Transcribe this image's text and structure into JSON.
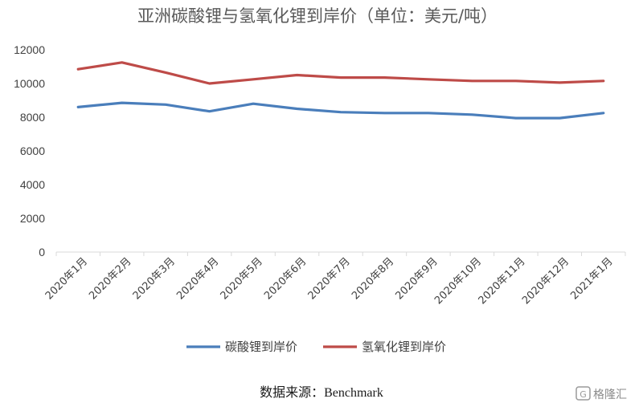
{
  "chart_data": {
    "type": "line",
    "title": "亚洲碳酸锂与氢氧化锂到岸价（单位：美元/吨）",
    "categories": [
      "2020年1月",
      "2020年2月",
      "2020年3月",
      "2020年4月",
      "2020年5月",
      "2020年6月",
      "2020年7月",
      "2020年8月",
      "2020年9月",
      "2020年10月",
      "2020年11月",
      "2020年12月",
      "2021年1月"
    ],
    "series": [
      {
        "name": "碳酸锂到岸价",
        "color": "#4a7ebb",
        "values": [
          8600,
          8850,
          8750,
          8350,
          8800,
          8500,
          8300,
          8250,
          8250,
          8150,
          7950,
          7950,
          8250
        ]
      },
      {
        "name": "氢氧化锂到岸价",
        "color": "#be4b48",
        "values": [
          10850,
          11250,
          10650,
          10000,
          10250,
          10500,
          10350,
          10350,
          10250,
          10150,
          10150,
          10050,
          10150
        ]
      }
    ],
    "yticks": [
      "0",
      "2000",
      "4000",
      "6000",
      "8000",
      "10000",
      "12000"
    ],
    "ylim": [
      0,
      12000
    ],
    "grid": false,
    "legend_position": "bottom",
    "source": "数据来源：Benchmark"
  },
  "watermark": {
    "text": "格隆汇"
  }
}
